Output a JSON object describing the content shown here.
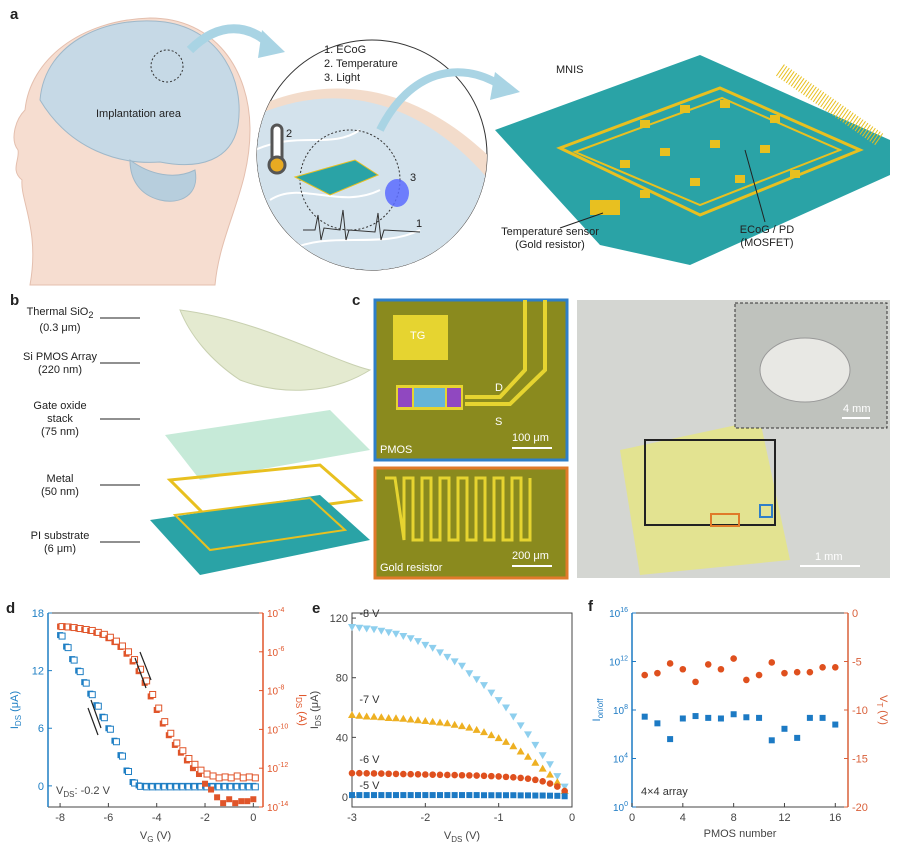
{
  "panel_letters": [
    "a",
    "b",
    "c",
    "d",
    "e",
    "f"
  ],
  "panel_a": {
    "implantation_label": "Implantation area",
    "modalities": [
      "1. ECoG",
      "2. Temperature",
      "3. Light"
    ],
    "markers": [
      "1",
      "2",
      "3"
    ],
    "mnis_label": "MNIS",
    "temp_sensor": [
      "Temperature sensor",
      "(Gold resistor)"
    ],
    "ecog_pd": [
      "ECoG / PD",
      "(MOSFET)"
    ],
    "colors": {
      "substrate": "#2aa3a6",
      "metal": "#e8c020",
      "brain": "#c8dbe6",
      "skin": "#f6ddd0"
    }
  },
  "panel_b": {
    "layers": [
      {
        "name": "Thermal SiO",
        "sub": "2",
        "thick": "(0.3 μm)"
      },
      {
        "name": "Si PMOS Array",
        "sub": "",
        "thick": "(220 nm)"
      },
      {
        "name": "Gate oxide",
        "sub": "",
        "thick": "stack",
        "thick2": "(75 nm)"
      },
      {
        "name": "Metal",
        "sub": "",
        "thick": "(50 nm)"
      },
      {
        "name": "PI substrate",
        "sub": "",
        "thick": "(6 μm)"
      }
    ]
  },
  "panel_c": {
    "pmos": {
      "tg": "TG",
      "d": "D",
      "s": "S",
      "label": "PMOS",
      "scale": "100 μm",
      "border": "#2f7fc8"
    },
    "resistor": {
      "label": "Gold resistor",
      "scale": "200 μm",
      "border": "#e07a2a"
    },
    "photo": {
      "inset_scale": "4 mm",
      "scale": "1 mm"
    }
  },
  "chart_data": [
    {
      "panel": "d",
      "type": "scatter",
      "xlabel": {
        "main": "V",
        "sub": "G",
        "unit": " (V)"
      },
      "ylabel": {
        "main": "I",
        "sub": "DS",
        "unit": " (μA)"
      },
      "y2label": {
        "main": "I",
        "sub": "DS",
        "unit": " (A)"
      },
      "xlim": [
        -8.5,
        0.4
      ],
      "ylim": [
        -2.2,
        18
      ],
      "y2lim_log10": [
        -14,
        -4
      ],
      "y2scale": "log",
      "xticks": [
        "-8",
        "-6",
        "-4",
        "-2",
        "0"
      ],
      "yticks": [
        "0",
        "6",
        "12",
        "18"
      ],
      "y2ticks": [
        "-14",
        "-12",
        "-10",
        "-8",
        "-6",
        "-4"
      ],
      "annotation": {
        "main": "V",
        "sub": "DS",
        "rest": ": -0.2 V"
      },
      "colors": {
        "linear": "#1f7fc4",
        "log": "#e0552a"
      },
      "x": [
        -8,
        -7.75,
        -7.5,
        -7.25,
        -7,
        -6.75,
        -6.5,
        -6.25,
        -6,
        -5.75,
        -5.5,
        -5.25,
        -5,
        -4.75,
        -4.5,
        -4.25,
        -4,
        -3.75,
        -3.5,
        -3.25,
        -3,
        -2.75,
        -2.5,
        -2.25,
        -2,
        -1.75,
        -1.5,
        -1.25,
        -1,
        -0.75,
        -0.5,
        -0.25,
        0
      ],
      "series": [
        {
          "axis": "left",
          "values": [
            15.7,
            14.5,
            13.2,
            12,
            10.8,
            9.6,
            8.4,
            7.2,
            6.0,
            4.7,
            3.2,
            1.6,
            0.4,
            0.05,
            0,
            0,
            0,
            0,
            0,
            0,
            0,
            0,
            0,
            0,
            0,
            0,
            0,
            0,
            0,
            0,
            0,
            0,
            0
          ]
        },
        {
          "axis": "right",
          "scale": "log10",
          "fill": "open",
          "values": [
            -4.7,
            -4.72,
            -4.75,
            -4.8,
            -4.85,
            -4.9,
            -5.0,
            -5.1,
            -5.25,
            -5.45,
            -5.7,
            -6.0,
            -6.4,
            -6.9,
            -7.5,
            -8.2,
            -8.9,
            -9.6,
            -10.2,
            -10.7,
            -11.1,
            -11.5,
            -11.8,
            -12.1,
            -12.3,
            -12.4,
            -12.5,
            -12.45,
            -12.5,
            -12.4,
            -12.5,
            -12.45,
            -12.5
          ]
        },
        {
          "axis": "right",
          "scale": "log10",
          "fill": "filled",
          "values": [
            -4.7,
            -4.72,
            -4.75,
            -4.8,
            -4.85,
            -4.92,
            -5.02,
            -5.12,
            -5.3,
            -5.5,
            -5.75,
            -6.1,
            -6.5,
            -7.0,
            -7.6,
            -8.3,
            -9.0,
            -9.7,
            -10.3,
            -10.8,
            -11.2,
            -11.6,
            -12.0,
            -12.3,
            -12.8,
            -13.1,
            -13.5,
            -13.8,
            -13.6,
            -13.8,
            -13.7,
            -13.7,
            -13.6
          ]
        }
      ]
    },
    {
      "panel": "e",
      "type": "scatter",
      "xlabel": {
        "main": "V",
        "sub": "DS",
        "unit": " (V)"
      },
      "ylabel": {
        "main": "I",
        "sub": "DS",
        "unit": " (μA)"
      },
      "xlim": [
        -3,
        0
      ],
      "ylim": [
        -6.7,
        123.4
      ],
      "xticks": [
        "-3",
        "-2",
        "-1",
        "0"
      ],
      "yticks": [
        "0",
        "40",
        "80",
        "120"
      ],
      "x": [
        -3.0,
        -2.9,
        -2.8,
        -2.7,
        -2.6,
        -2.5,
        -2.4,
        -2.3,
        -2.2,
        -2.1,
        -2.0,
        -1.9,
        -1.8,
        -1.7,
        -1.6,
        -1.5,
        -1.4,
        -1.3,
        -1.2,
        -1.1,
        -1.0,
        -0.9,
        -0.8,
        -0.7,
        -0.6,
        -0.5,
        -0.4,
        -0.3,
        -0.2,
        -0.1
      ],
      "series": [
        {
          "name": "-8 V",
          "marker": "triangle-down",
          "color": "#8ecfee",
          "values": [
            114,
            113.5,
            113,
            112.5,
            111.5,
            110.5,
            109.5,
            108,
            106.5,
            104.5,
            102,
            100,
            97,
            94,
            91,
            88,
            83,
            79,
            75,
            70,
            65,
            60,
            54,
            48,
            42,
            35,
            28,
            22,
            14,
            7
          ]
        },
        {
          "name": "-7 V",
          "marker": "triangle-up",
          "color": "#eeb022",
          "values": [
            55,
            54.5,
            54,
            53.8,
            53.5,
            53,
            52.8,
            52.5,
            52,
            51.5,
            51,
            50.5,
            50,
            49.5,
            48.5,
            47.5,
            46.5,
            45,
            43.5,
            41.5,
            39.5,
            37,
            34,
            30.5,
            27,
            23,
            19,
            15,
            10,
            4
          ]
        },
        {
          "name": "-6 V",
          "marker": "circle",
          "color": "#df501e",
          "values": [
            16,
            16,
            15.9,
            15.8,
            15.7,
            15.6,
            15.5,
            15.4,
            15.3,
            15.2,
            15.1,
            15,
            14.9,
            14.8,
            14.7,
            14.6,
            14.5,
            14.4,
            14.2,
            14,
            13.8,
            13.5,
            13.2,
            12.8,
            12.3,
            11.5,
            10.5,
            9,
            7,
            4
          ]
        },
        {
          "name": "-5 V",
          "marker": "square",
          "color": "#1c7ac4",
          "values": [
            1.3,
            1.3,
            1.3,
            1.3,
            1.3,
            1.3,
            1.3,
            1.3,
            1.3,
            1.3,
            1.3,
            1.3,
            1.3,
            1.3,
            1.3,
            1.3,
            1.3,
            1.3,
            1.2,
            1.2,
            1.2,
            1.2,
            1.2,
            1.1,
            1.1,
            1.0,
            1.0,
            0.9,
            0.8,
            0.5
          ]
        }
      ]
    },
    {
      "panel": "f",
      "type": "scatter",
      "xlabel": {
        "main": "PMOS number",
        "sub": "",
        "unit": ""
      },
      "ylabel": {
        "main": "I",
        "sub": "on/off",
        "unit": ""
      },
      "y2label": {
        "main": "V",
        "sub": "T",
        "unit": " (V)"
      },
      "xlim": [
        0,
        17
      ],
      "ylim_log10": [
        0,
        16
      ],
      "yscale": "log",
      "y2lim": [
        -20,
        0
      ],
      "xticks": [
        "0",
        "4",
        "8",
        "12",
        "16"
      ],
      "yticks": [
        "0",
        "4",
        "8",
        "12",
        "16"
      ],
      "y2ticks": [
        "-20",
        "-15",
        "-10",
        "-5",
        "0"
      ],
      "annotation": "4×4 array",
      "x": [
        1,
        2,
        3,
        4,
        5,
        6,
        7,
        8,
        9,
        10,
        11,
        12,
        13,
        14,
        15,
        16
      ],
      "series": [
        {
          "axis": "left",
          "scale": "log10",
          "marker": "square",
          "color": "#1c7ac4",
          "values": [
            7.45,
            6.9,
            5.6,
            7.3,
            7.5,
            7.35,
            7.3,
            7.65,
            7.4,
            7.35,
            5.5,
            6.45,
            5.7,
            7.35,
            7.35,
            6.8
          ]
        },
        {
          "axis": "right",
          "marker": "circle",
          "color": "#df501e",
          "values": [
            -6.4,
            -6.2,
            -5.2,
            -5.8,
            -7.1,
            -5.3,
            -5.8,
            -4.7,
            -6.9,
            -6.4,
            -5.1,
            -6.2,
            -6.1,
            -6.1,
            -5.6,
            -5.6
          ]
        }
      ]
    }
  ]
}
